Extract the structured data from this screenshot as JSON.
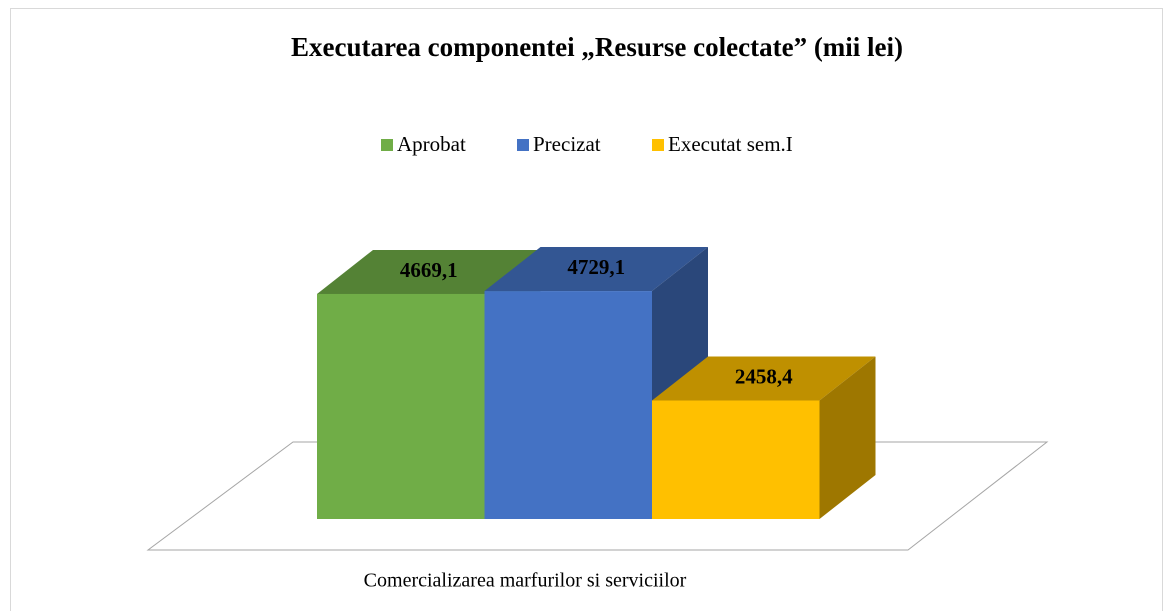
{
  "chart_data": {
    "type": "bar3d",
    "title": "Executarea componentei „Resurse colectate” (mii lei)",
    "categories": [
      "Comercializarea marfurilor si serviciilor"
    ],
    "series": [
      {
        "name": "Aprobat",
        "color": "#70ad47",
        "values": [
          4669.1
        ],
        "value_labels": [
          "4669,1"
        ]
      },
      {
        "name": "Precizat",
        "color": "#4472c4",
        "values": [
          4729.1
        ],
        "value_labels": [
          "4729,1"
        ]
      },
      {
        "name": "Executat sem.I",
        "color": "#ffc000",
        "values": [
          2458.4
        ],
        "value_labels": [
          "2458,4"
        ]
      }
    ],
    "legend": "top"
  }
}
